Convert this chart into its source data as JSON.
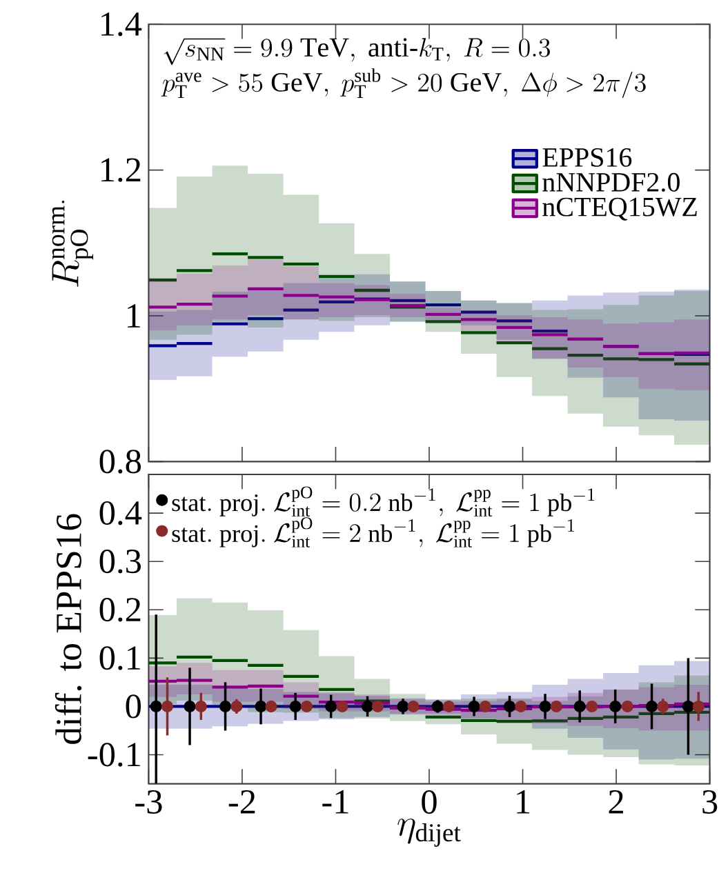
{
  "chart_data": [
    {
      "type": "step",
      "ylabel": "R_{\\mathrm{pO}}^{\\mathrm{norm.}}",
      "annotations": [
        "\\sqrt{s_{\\mathrm{NN}}} = 9.9\\ \\mathrm{TeV},\\ \\mathrm{anti}\\mbox{-}k_{\\mathrm{T}},\\ R = 0.3",
        "p_{\\mathrm{T}}^{\\mathrm{ave}} > 55\\ \\mathrm{GeV},\\ p_{\\mathrm{T}}^{\\mathrm{sub}} > 20\\ \\mathrm{GeV},\\ \\Delta\\phi > 2\\pi/3"
      ],
      "x": [
        -3,
        -2.7,
        -2.32,
        -1.94,
        -1.56,
        -1.18,
        -0.8,
        -0.42,
        -0.04,
        0.34,
        0.72,
        1.1,
        1.48,
        1.86,
        2.24,
        2.62,
        3
      ],
      "xlim": [
        -3,
        3
      ],
      "xticks": [
        -3,
        -2,
        -1,
        0,
        1,
        2,
        3
      ],
      "ylim": [
        0.8,
        1.4
      ],
      "yticks": [
        0.8,
        1,
        1.2,
        1.4
      ],
      "tick_labels": "y",
      "legend": "top right",
      "series": [
        {
          "name": "EPPS16",
          "color": "#00008b",
          "values": [
            0.959,
            0.962,
            0.989,
            0.996,
            1.008,
            1.019,
            1.023,
            1.021,
            1.015,
            1.005,
            0.993,
            0.979,
            0.968,
            0.958,
            0.948,
            0.947,
            0.947
          ],
          "lower": [
            0.912,
            0.917,
            0.944,
            0.951,
            0.967,
            0.978,
            0.987,
            0.992,
            0.993,
            0.987,
            0.967,
            0.941,
            0.915,
            0.888,
            0.858,
            0.856,
            0.856
          ],
          "upper": [
            1.006,
            1.008,
            1.033,
            1.039,
            1.045,
            1.055,
            1.057,
            1.047,
            1.034,
            1.021,
            1.017,
            1.021,
            1.028,
            1.032,
            1.033,
            1.036,
            1.036
          ]
        },
        {
          "name": "nNNPDF2.0",
          "color": "#004d00",
          "values": [
            1.049,
            1.062,
            1.085,
            1.08,
            1.071,
            1.054,
            1.035,
            1.012,
            0.992,
            0.977,
            0.963,
            0.955,
            0.946,
            0.941,
            0.94,
            0.934,
            0.934
          ],
          "lower": [
            0.967,
            0.974,
            0.992,
            0.984,
            0.995,
            0.993,
            0.998,
            0.992,
            0.978,
            0.948,
            0.916,
            0.89,
            0.866,
            0.848,
            0.836,
            0.823,
            0.823
          ],
          "upper": [
            1.148,
            1.191,
            1.206,
            1.195,
            1.166,
            1.127,
            1.085,
            1.047,
            1.034,
            1.021,
            1.018,
            1.008,
            1.009,
            1.015,
            1.028,
            1.034,
            1.034
          ]
        },
        {
          "name": "nCTEQ15WZ",
          "color": "#8b008b",
          "values": [
            1.012,
            1.016,
            1.027,
            1.037,
            1.028,
            1.026,
            1.022,
            1.014,
            1.002,
            0.995,
            0.984,
            0.974,
            0.968,
            0.958,
            0.948,
            0.949,
            0.949
          ],
          "lower": [
            0.98,
            0.987,
            0.995,
            1.001,
            0.995,
            0.998,
            1.001,
            0.998,
            0.992,
            0.979,
            0.963,
            0.941,
            0.929,
            0.916,
            0.9,
            0.898,
            0.898
          ],
          "upper": [
            1.052,
            1.058,
            1.069,
            1.077,
            1.068,
            1.045,
            1.042,
            1.03,
            1.011,
            1.006,
            1.001,
            0.998,
            0.995,
            0.989,
            0.991,
            0.995,
            0.995
          ]
        }
      ]
    },
    {
      "type": "step",
      "xlabel": "\\eta_{\\mathrm{dijet}}",
      "ylabel": "diff. to EPPS16",
      "x": [
        -3,
        -2.7,
        -2.32,
        -1.94,
        -1.56,
        -1.18,
        -0.8,
        -0.42,
        -0.04,
        0.34,
        0.72,
        1.1,
        1.48,
        1.86,
        2.24,
        2.62,
        3
      ],
      "xlim": [
        -3,
        3
      ],
      "xticks": [
        -3,
        -2,
        -1,
        0,
        1,
        2,
        3
      ],
      "ylim": [
        -0.16,
        0.48
      ],
      "yticks": [
        -0.1,
        0,
        0.1,
        0.2,
        0.3,
        0.4
      ],
      "legend": "top left",
      "series": [
        {
          "color": "#00008b",
          "values": [
            0,
            0,
            0,
            0,
            0,
            0,
            0,
            0,
            0,
            0,
            0,
            0,
            0,
            0,
            0,
            0,
            0
          ],
          "lower": [
            -0.046,
            -0.046,
            -0.041,
            -0.036,
            -0.03,
            -0.027,
            -0.022,
            -0.017,
            -0.015,
            -0.025,
            -0.033,
            -0.046,
            -0.065,
            -0.089,
            -0.11,
            -0.108,
            -0.108
          ],
          "upper": [
            0.045,
            0.045,
            0.042,
            0.036,
            0.03,
            0.027,
            0.022,
            0.017,
            0.015,
            0.025,
            0.03,
            0.045,
            0.057,
            0.069,
            0.085,
            0.094,
            0.094
          ]
        },
        {
          "color": "#004d00",
          "values": [
            0.09,
            0.102,
            0.095,
            0.085,
            0.062,
            0.035,
            0.011,
            -0.003,
            -0.022,
            -0.029,
            -0.031,
            -0.03,
            -0.025,
            -0.022,
            -0.015,
            -0.012,
            -0.012
          ],
          "lower": [
            0.005,
            0.012,
            0.003,
            -0.012,
            -0.013,
            -0.024,
            -0.025,
            -0.03,
            -0.037,
            -0.058,
            -0.077,
            -0.09,
            -0.1,
            -0.105,
            -0.12,
            -0.122,
            -0.122
          ],
          "upper": [
            0.189,
            0.224,
            0.215,
            0.199,
            0.158,
            0.104,
            0.057,
            0.026,
            0.014,
            0.016,
            0.017,
            0.011,
            0.021,
            0.035,
            0.05,
            0.064,
            0.064
          ]
        },
        {
          "color": "#8b008b",
          "values": [
            0.052,
            0.054,
            0.04,
            0.042,
            0.021,
            0.009,
            0.007,
            -0.003,
            -0.006,
            -0.008,
            -0.005,
            -0.001,
            -0.001,
            0,
            0.002,
            0.005,
            0.005
          ],
          "lower": [
            0.02,
            0.025,
            0.01,
            0.01,
            -0.005,
            -0.01,
            -0.01,
            -0.015,
            -0.02,
            -0.025,
            -0.03,
            -0.035,
            -0.04,
            -0.045,
            -0.05,
            -0.05,
            -0.05
          ],
          "upper": [
            0.083,
            0.09,
            0.075,
            0.075,
            0.05,
            0.03,
            0.025,
            0.015,
            0.01,
            0.011,
            0.015,
            0.02,
            0.028,
            0.035,
            0.04,
            0.045,
            0.045
          ]
        },
        {
          "type": "scatter",
          "name": "\\mathrm{stat.\\ proj.}\\ \\mathcal{L}_{\\mathrm{int}}^{\\mathrm{pO}} = 0.2\\ \\mathrm{nb}^{-1},\\ \\mathcal{L}_{\\mathrm{int}}^{\\mathrm{pp}} = 1\\ \\mathrm{pb}^{-1}",
          "color": "#000000",
          "marker": "circle",
          "x": [
            -2.92,
            -2.56,
            -2.18,
            -1.8,
            -1.43,
            -1.05,
            -0.66,
            -0.28,
            0.09,
            0.48,
            0.86,
            1.24,
            1.61,
            1.99,
            2.38,
            2.77
          ],
          "values": [
            0,
            0,
            0,
            0,
            0,
            0,
            0,
            0,
            0,
            0,
            0,
            0,
            0,
            0,
            0,
            0
          ],
          "errors": [
            [
              -0.16,
              0.19
            ],
            0.08,
            0.05,
            0.037,
            0.028,
            0.024,
            0.021,
            0.016,
            0.013,
            0.02,
            0.022,
            0.026,
            0.033,
            0.035,
            0.047,
            0.1
          ]
        },
        {
          "type": "scatter",
          "name": "\\mathrm{stat.\\ proj.}\\ \\mathcal{L}_{\\mathrm{int}}^{\\mathrm{pO}} = 2\\ \\mathrm{nb}^{-1},\\ \\mathcal{L}_{\\mathrm{int}}^{\\mathrm{pp}} = 1\\ \\mathrm{pb}^{-1}",
          "color": "#8b2a2a",
          "marker": "circle",
          "x": [
            -2.8,
            -2.44,
            -2.06,
            -1.69,
            -1.31,
            -0.93,
            -0.55,
            -0.17,
            0.21,
            0.6,
            0.98,
            1.36,
            1.74,
            2.12,
            2.5,
            2.88
          ],
          "values": [
            0,
            0,
            0,
            0,
            0,
            0,
            0,
            0,
            0,
            0,
            0,
            0,
            0,
            0,
            0,
            0
          ],
          "errors": [
            0.06,
            0.028,
            0.015,
            0.012,
            0.01,
            0.01,
            0.01,
            0.01,
            0.01,
            0.01,
            0.01,
            0.01,
            0.01,
            0.012,
            0.016,
            0.03
          ]
        }
      ]
    }
  ]
}
